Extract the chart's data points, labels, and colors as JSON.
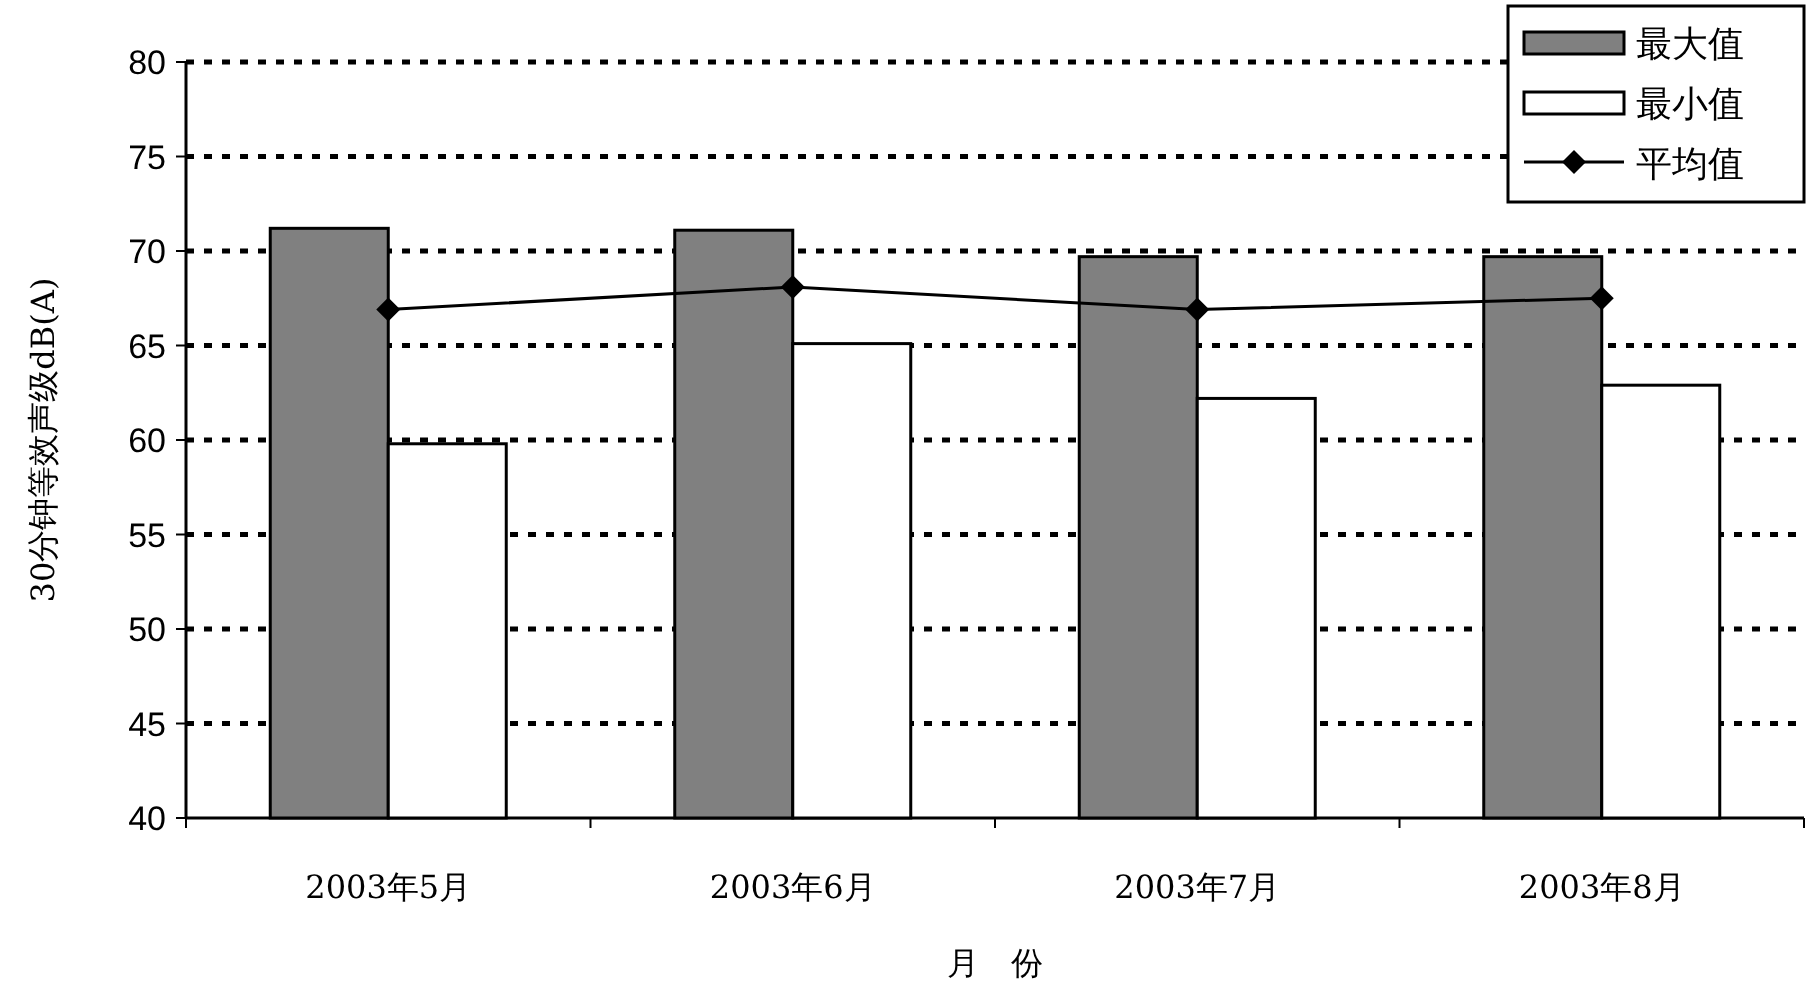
{
  "chart_data": {
    "type": "bar",
    "ylabel": "30分钟等效声级dB(A)",
    "xlabel": "月　份",
    "categories": [
      "2003年5月",
      "2003年6月",
      "2003年7月",
      "2003年8月"
    ],
    "series": [
      {
        "name": "最大值",
        "color": "#808080",
        "values": [
          71.2,
          71.1,
          69.7,
          69.7
        ]
      },
      {
        "name": "最小值",
        "color": "#ffffff",
        "values": [
          59.8,
          65.1,
          62.2,
          62.9
        ]
      },
      {
        "name": "平均值",
        "type": "line",
        "color": "#000000",
        "values": [
          66.9,
          68.1,
          66.9,
          67.5
        ]
      }
    ],
    "ylim": [
      40,
      80
    ],
    "yticks": [
      40,
      45,
      50,
      55,
      60,
      65,
      70,
      75,
      80
    ],
    "grid": "y",
    "legend": "top right",
    "marker": "diamond",
    "line_style": "solid"
  }
}
